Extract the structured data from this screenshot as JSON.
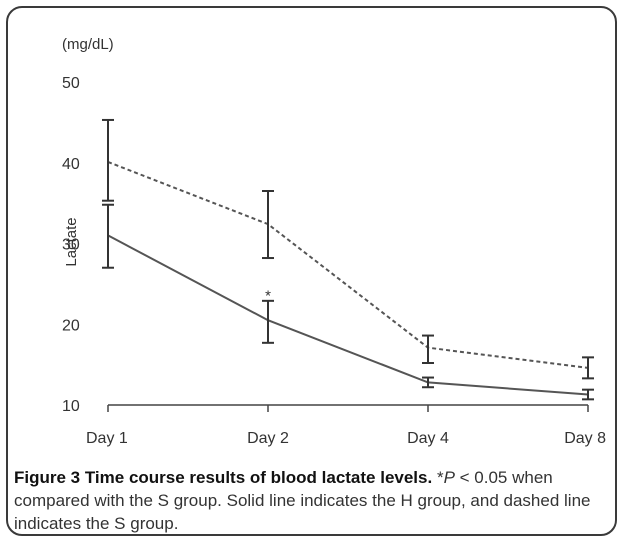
{
  "chart_data": {
    "type": "line",
    "unit_label": "(mg/dL)",
    "ylabel": "Lactate",
    "xlabel": "",
    "categories": [
      "Day 1",
      "Day 2",
      "Day 4",
      "Day 8"
    ],
    "yticks": [
      10,
      20,
      30,
      40,
      50
    ],
    "ylim": [
      10,
      50
    ],
    "series": [
      {
        "style": "dashed",
        "values": [
          40.1,
          32.4,
          17.1,
          14.6
        ],
        "err_low": [
          35.3,
          28.2,
          15.2,
          13.3
        ],
        "err_high": [
          45.3,
          36.5,
          18.6,
          15.9
        ]
      },
      {
        "style": "solid",
        "values": [
          31.0,
          20.5,
          12.8,
          11.3
        ],
        "err_low": [
          27.0,
          17.7,
          12.2,
          10.7
        ],
        "err_high": [
          34.8,
          22.9,
          13.4,
          11.9
        ]
      }
    ],
    "annotations": [
      {
        "text": "*",
        "category": "Day 2",
        "y": 23.7
      }
    ],
    "grid": false,
    "colors": {
      "line": "#555555",
      "axis": "#444444"
    }
  },
  "caption": {
    "title": "Figure 3 Time course results of blood lactate levels.",
    "star": " *",
    "p_symbol": "P",
    "rest": " < 0.05 when compared with the S group. Solid line indicates the H group, and dashed line indicates the S group."
  }
}
